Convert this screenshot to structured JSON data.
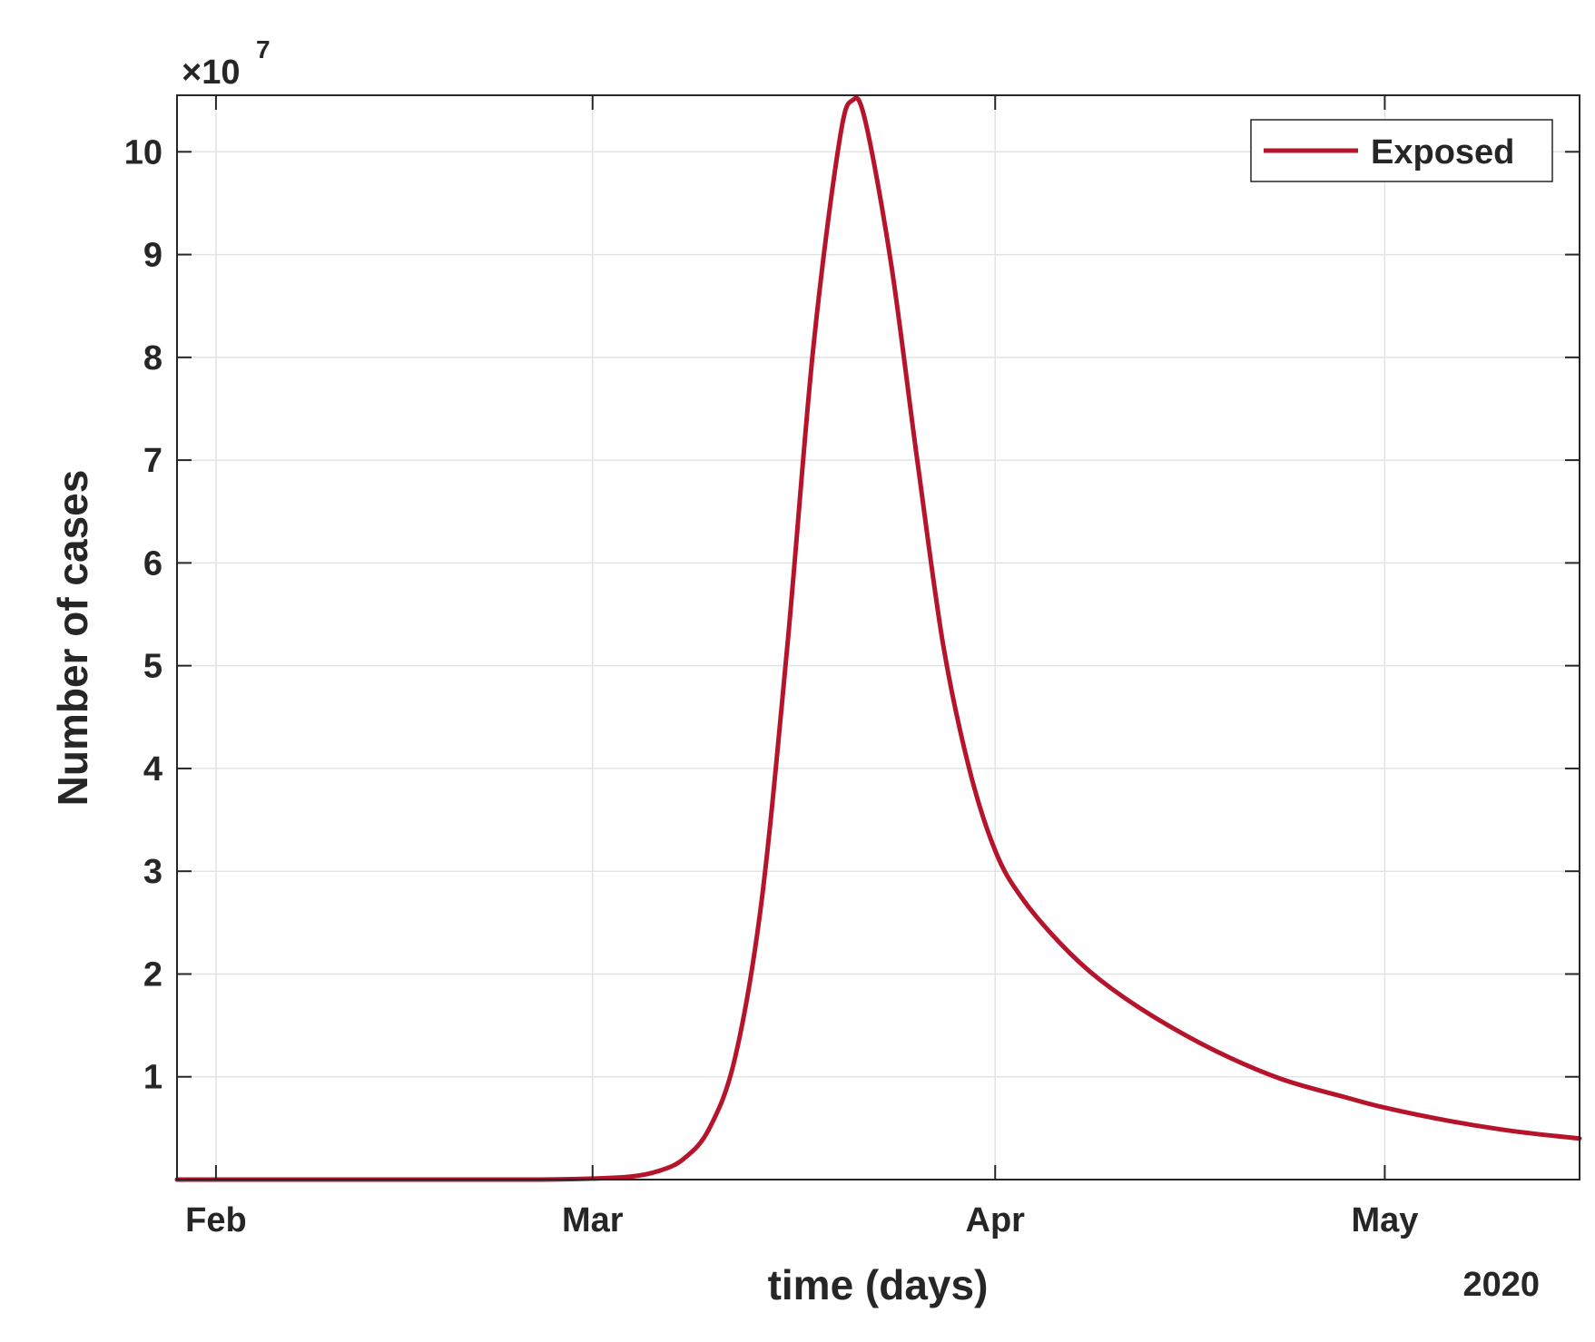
{
  "chart_data": {
    "type": "line",
    "title": "",
    "xlabel": "time (days)",
    "ylabel": "Number of cases",
    "x_axis_year_label": "2020",
    "y_multiplier_base": "×10",
    "y_multiplier_exponent": "7",
    "xlim": [
      "2020-01-29",
      "2020-05-16"
    ],
    "ylim": [
      0,
      10.55
    ],
    "y_units": "×10^7",
    "x_ticks": [
      {
        "date": "2020-02-01",
        "label": "Feb"
      },
      {
        "date": "2020-03-01",
        "label": "Mar"
      },
      {
        "date": "2020-04-01",
        "label": "Apr"
      },
      {
        "date": "2020-05-01",
        "label": "May"
      }
    ],
    "y_ticks": [
      {
        "value": 1,
        "label": "1"
      },
      {
        "value": 2,
        "label": "2"
      },
      {
        "value": 3,
        "label": "3"
      },
      {
        "value": 4,
        "label": "4"
      },
      {
        "value": 5,
        "label": "5"
      },
      {
        "value": 6,
        "label": "6"
      },
      {
        "value": 7,
        "label": "7"
      },
      {
        "value": 8,
        "label": "8"
      },
      {
        "value": 9,
        "label": "9"
      },
      {
        "value": 10,
        "label": "10"
      }
    ],
    "grid": true,
    "legend_position": "top-right",
    "series": [
      {
        "name": "Exposed",
        "color": "#b5142b",
        "points": [
          {
            "x": "2020-01-29",
            "y": 0
          },
          {
            "x": "2020-02-05",
            "y": 0.0
          },
          {
            "x": "2020-02-12",
            "y": 0.0
          },
          {
            "x": "2020-02-19",
            "y": 0.0
          },
          {
            "x": "2020-02-26",
            "y": 0.0
          },
          {
            "x": "2020-03-01",
            "y": 0.01
          },
          {
            "x": "2020-03-04",
            "y": 0.03
          },
          {
            "x": "2020-03-06",
            "y": 0.08
          },
          {
            "x": "2020-03-08",
            "y": 0.2
          },
          {
            "x": "2020-03-10",
            "y": 0.5
          },
          {
            "x": "2020-03-12",
            "y": 1.2
          },
          {
            "x": "2020-03-14",
            "y": 2.7
          },
          {
            "x": "2020-03-16",
            "y": 5.2
          },
          {
            "x": "2020-03-18",
            "y": 8.1
          },
          {
            "x": "2020-03-20",
            "y": 10.1
          },
          {
            "x": "2020-03-21",
            "y": 10.5
          },
          {
            "x": "2020-03-22",
            "y": 10.3
          },
          {
            "x": "2020-03-24",
            "y": 8.9
          },
          {
            "x": "2020-03-26",
            "y": 7.0
          },
          {
            "x": "2020-03-28",
            "y": 5.2
          },
          {
            "x": "2020-03-30",
            "y": 4.0
          },
          {
            "x": "2020-04-01",
            "y": 3.2
          },
          {
            "x": "2020-04-03",
            "y": 2.75
          },
          {
            "x": "2020-04-06",
            "y": 2.3
          },
          {
            "x": "2020-04-09",
            "y": 1.95
          },
          {
            "x": "2020-04-13",
            "y": 1.6
          },
          {
            "x": "2020-04-18",
            "y": 1.25
          },
          {
            "x": "2020-04-23",
            "y": 0.98
          },
          {
            "x": "2020-04-28",
            "y": 0.8
          },
          {
            "x": "2020-05-01",
            "y": 0.7
          },
          {
            "x": "2020-05-06",
            "y": 0.57
          },
          {
            "x": "2020-05-11",
            "y": 0.47
          },
          {
            "x": "2020-05-16",
            "y": 0.4
          }
        ]
      }
    ]
  }
}
